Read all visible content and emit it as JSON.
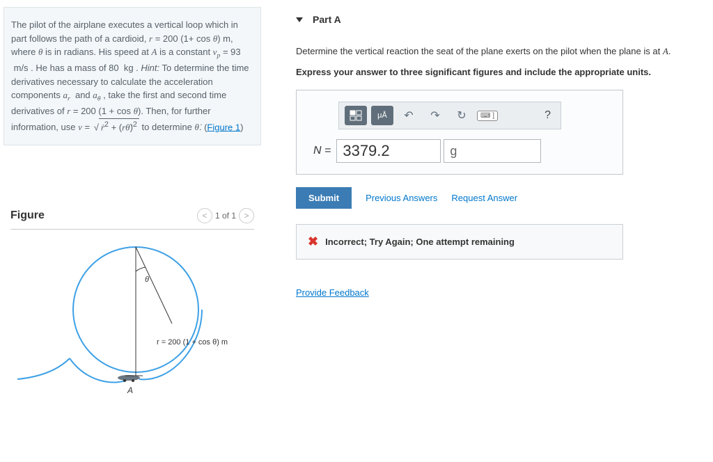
{
  "problem": {
    "text_html": "The pilot of the airplane executes a vertical loop which in part follows the path of a cardioid, <span class='it'>r</span> = 200 (1+ cos <span class='it'>θ</span>) m, where <span class='it'>θ</span> is in radians. His speed at <span class='it'>A</span> is a constant <span class='it'>v<sub>p</sub></span> = 93 &nbsp;m/s . He has a mass of 80 &nbsp;kg . <i>Hint:</i> To determine the time derivatives necessary to calculate the acceleration components <span class='it'>a<sub>r</sub></span> &nbsp;and <span class='it'>a<sub>θ</sub></span> , take the first and second time derivatives of <span class='it'>r</span> = 200 (1 + cos <span class='it'>θ</span>). Then, for further information, use <span class='it'>v</span> = <span class='sqrt'>√<span class='radicand'><span class='it'>ṙ</span><sup>2</sup> + (<span class='it'>rθ̇</span>)<sup>2</sup></span></span> to determine <span class='it'>θ̇</span>. ",
    "figure_link": "Figure 1"
  },
  "figure": {
    "heading": "Figure",
    "nav_prev": "<",
    "nav_label": "1 of 1",
    "nav_next": ">",
    "eq_label": "r = 200 (1 + cos θ) m",
    "theta_label": "θ",
    "point_label": "A"
  },
  "partA": {
    "header": "Part A",
    "instruction_html": "Determine the vertical reaction the seat of the plane exerts on the pilot when the plane is at <span class='it'>A</span>.",
    "bold_instruction": "Express your answer to three significant figures and include the appropriate units.",
    "toolbar": {
      "templates_title": "□/□",
      "units_label": "μÅ",
      "undo": "↶",
      "redo": "↷",
      "reset": "↻",
      "keyboard": "⌨ ]",
      "help": "?"
    },
    "input": {
      "prefix": "N =",
      "value": "3379.2",
      "unit": "g"
    },
    "buttons": {
      "submit": "Submit",
      "previous": "Previous Answers",
      "request": "Request Answer"
    },
    "feedback": "Incorrect; Try Again; One attempt remaining",
    "provide_feedback": "Provide Feedback"
  }
}
